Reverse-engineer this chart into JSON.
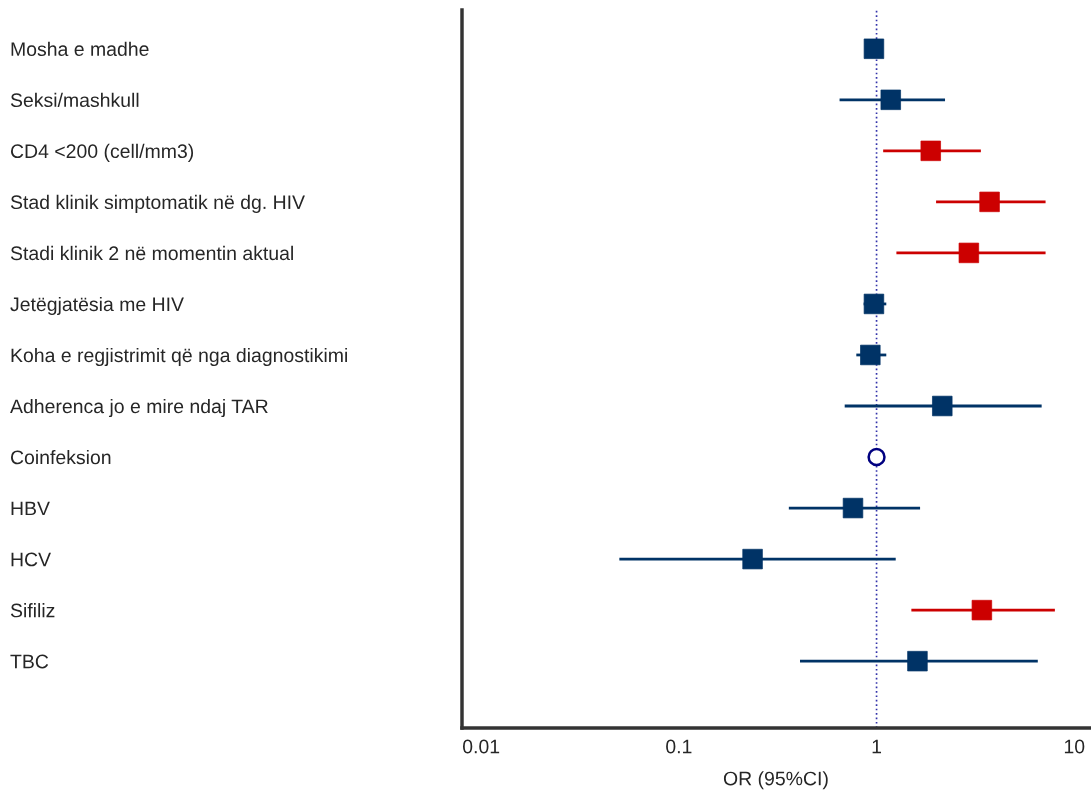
{
  "chart_data": {
    "type": "scatter",
    "orientation": "horizontal",
    "xlabel": "OR (95%CI)",
    "categories": [
      "Mosha e madhe",
      "Seksi/mashkull",
      "CD4 <200 (cell/mm3)",
      "Stad klinik simptomatik në dg. HIV",
      "Stadi klinik 2 në momentin aktual",
      "Jetëgjatësia me HIV",
      "Koha e regjistrimit që nga diagnostikimi",
      "Adherenca jo e mire ndaj TAR",
      "Coinfeksion",
      "HBV",
      "HCV",
      "Sifiliz",
      "TBC"
    ],
    "series": [
      {
        "color": "#003366",
        "marker": "square",
        "values": [
          0.97,
          1.18,
          null,
          null,
          null,
          0.97,
          0.93,
          2.15,
          null,
          0.76,
          0.236,
          null,
          1.61
        ],
        "errors": [
          null,
          [
            0.65,
            2.22
          ],
          null,
          null,
          null,
          [
            0.86,
            1.12
          ],
          [
            0.79,
            1.12
          ],
          [
            0.69,
            6.84
          ],
          null,
          [
            0.36,
            1.66
          ],
          [
            0.05,
            1.25
          ],
          null,
          [
            0.41,
            6.54
          ]
        ]
      },
      {
        "color": "#cc0000",
        "marker": "square",
        "values": [
          null,
          null,
          1.88,
          3.73,
          2.93,
          null,
          null,
          null,
          null,
          null,
          null,
          3.41,
          null
        ],
        "errors": [
          null,
          null,
          [
            1.08,
            3.37
          ],
          [
            2.0,
            7.16
          ],
          [
            1.26,
            7.16
          ],
          null,
          null,
          null,
          null,
          null,
          null,
          [
            1.5,
            7.98
          ],
          null
        ]
      },
      {
        "color": "#000080",
        "marker": "circle",
        "values": [
          null,
          null,
          null,
          null,
          null,
          null,
          null,
          null,
          1.0,
          null,
          null,
          null,
          null
        ]
      }
    ],
    "log": "x",
    "xlim": [
      0.008,
      12
    ],
    "xticks": [
      0.01,
      0.1,
      1,
      10
    ],
    "ref_lines": [
      {
        "axis": "x",
        "value": 1,
        "color": "#3333aa",
        "line_style": "dotted"
      }
    ],
    "grid": false,
    "legend": false
  }
}
